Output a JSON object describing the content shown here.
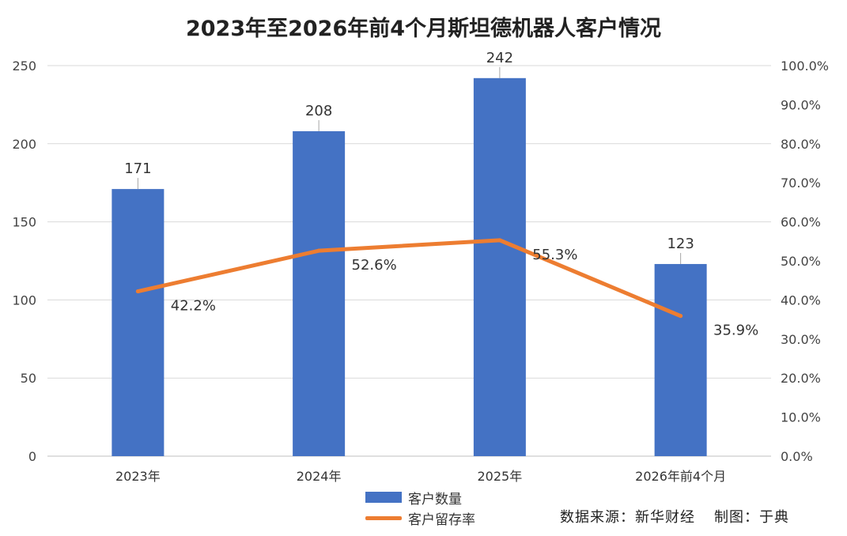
{
  "title": "2023年至2026年前4个月斯坦德机器人客户情况",
  "source_text": "数据来源：新华财经",
  "credit_text": "制图：于典",
  "colors": {
    "bar": "#4472C4",
    "line": "#ED7D31",
    "grid": "#D9D9D9"
  },
  "chart_data": {
    "type": "bar",
    "categories": [
      "2023年",
      "2024年",
      "2025年",
      "2026年前4个月"
    ],
    "series": [
      {
        "name": "客户数量",
        "type": "bar",
        "axis": "left",
        "values": [
          171,
          208,
          242,
          123
        ],
        "labels": [
          "171",
          "208",
          "242",
          "123"
        ]
      },
      {
        "name": "客户留存率",
        "type": "line",
        "axis": "right",
        "values": [
          42.2,
          52.6,
          55.3,
          35.9
        ],
        "labels": [
          "42.2%",
          "52.6%",
          "55.3%",
          "35.9%"
        ]
      }
    ],
    "y_left": {
      "min": 0,
      "max": 250,
      "ticks": [
        "0",
        "50",
        "100",
        "150",
        "200",
        "250"
      ]
    },
    "y_right": {
      "min": 0,
      "max": 100,
      "ticks": [
        "0.0%",
        "10.0%",
        "20.0%",
        "30.0%",
        "40.0%",
        "50.0%",
        "60.0%",
        "70.0%",
        "80.0%",
        "90.0%",
        "100.0%"
      ]
    },
    "grid": true,
    "legend": "bottom"
  }
}
